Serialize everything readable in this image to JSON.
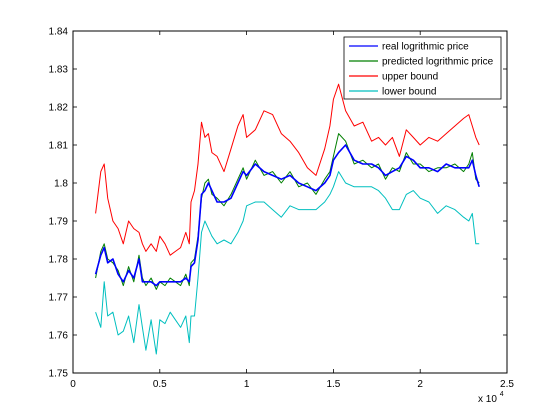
{
  "chart_data": {
    "type": "line",
    "title": "",
    "xlabel": "",
    "ylabel": "",
    "x_multiplier_label": "x 10",
    "x_multiplier_exponent": "4",
    "xlim": [
      0,
      2.5
    ],
    "ylim": [
      1.75,
      1.84
    ],
    "xticks": [
      "0",
      "0.5",
      "1",
      "1.5",
      "2",
      "2.5"
    ],
    "yticks": [
      "1.75",
      "1.76",
      "1.77",
      "1.78",
      "1.79",
      "1.8",
      "1.81",
      "1.82",
      "1.83",
      "1.84"
    ],
    "grid": false,
    "legend_position": "top-right",
    "x": [
      0.13,
      0.16,
      0.18,
      0.2,
      0.23,
      0.26,
      0.29,
      0.32,
      0.35,
      0.38,
      0.4,
      0.42,
      0.45,
      0.48,
      0.5,
      0.53,
      0.56,
      0.59,
      0.62,
      0.65,
      0.67,
      0.68,
      0.7,
      0.72,
      0.74,
      0.76,
      0.78,
      0.8,
      0.83,
      0.87,
      0.91,
      0.95,
      0.98,
      1.0,
      1.05,
      1.1,
      1.15,
      1.2,
      1.25,
      1.3,
      1.35,
      1.4,
      1.45,
      1.48,
      1.5,
      1.53,
      1.57,
      1.62,
      1.67,
      1.72,
      1.76,
      1.8,
      1.84,
      1.88,
      1.92,
      1.96,
      2.0,
      2.05,
      2.1,
      2.15,
      2.2,
      2.25,
      2.28,
      2.3,
      2.32,
      2.34
    ],
    "series": [
      {
        "name": "real logrithmic price",
        "color": "#0000ff",
        "values": [
          1.776,
          1.781,
          1.783,
          1.779,
          1.78,
          1.776,
          1.774,
          1.777,
          1.775,
          1.78,
          1.774,
          1.774,
          1.774,
          1.773,
          1.774,
          1.774,
          1.774,
          1.774,
          1.774,
          1.775,
          1.774,
          1.778,
          1.779,
          1.785,
          1.797,
          1.798,
          1.8,
          1.798,
          1.795,
          1.795,
          1.796,
          1.8,
          1.803,
          1.802,
          1.805,
          1.803,
          1.802,
          1.801,
          1.802,
          1.8,
          1.799,
          1.798,
          1.8,
          1.802,
          1.806,
          1.808,
          1.81,
          1.806,
          1.805,
          1.805,
          1.804,
          1.802,
          1.803,
          1.804,
          1.807,
          1.806,
          1.804,
          1.804,
          1.803,
          1.805,
          1.804,
          1.804,
          1.804,
          1.806,
          1.802,
          1.799
        ]
      },
      {
        "name": "predicted logrithmic price",
        "color": "#007f00",
        "values": [
          1.775,
          1.782,
          1.784,
          1.78,
          1.779,
          1.777,
          1.773,
          1.778,
          1.774,
          1.781,
          1.775,
          1.773,
          1.775,
          1.772,
          1.774,
          1.773,
          1.775,
          1.774,
          1.773,
          1.776,
          1.773,
          1.779,
          1.78,
          1.786,
          1.796,
          1.8,
          1.801,
          1.797,
          1.796,
          1.794,
          1.797,
          1.801,
          1.804,
          1.801,
          1.806,
          1.802,
          1.803,
          1.8,
          1.803,
          1.799,
          1.8,
          1.797,
          1.801,
          1.803,
          1.807,
          1.813,
          1.811,
          1.805,
          1.806,
          1.804,
          1.805,
          1.801,
          1.804,
          1.803,
          1.808,
          1.805,
          1.805,
          1.803,
          1.804,
          1.804,
          1.805,
          1.803,
          1.805,
          1.808,
          1.801,
          1.8
        ]
      },
      {
        "name": "upper bound",
        "color": "#ff0000",
        "values": [
          1.792,
          1.803,
          1.805,
          1.796,
          1.79,
          1.788,
          1.784,
          1.79,
          1.788,
          1.787,
          1.784,
          1.782,
          1.784,
          1.782,
          1.786,
          1.784,
          1.781,
          1.782,
          1.783,
          1.787,
          1.784,
          1.795,
          1.798,
          1.805,
          1.816,
          1.812,
          1.813,
          1.808,
          1.807,
          1.803,
          1.809,
          1.815,
          1.818,
          1.812,
          1.814,
          1.819,
          1.818,
          1.813,
          1.811,
          1.808,
          1.804,
          1.802,
          1.809,
          1.815,
          1.822,
          1.826,
          1.819,
          1.815,
          1.816,
          1.811,
          1.812,
          1.81,
          1.812,
          1.807,
          1.814,
          1.812,
          1.81,
          1.812,
          1.811,
          1.813,
          1.815,
          1.817,
          1.818,
          1.815,
          1.812,
          1.81
        ]
      },
      {
        "name": "lower bound",
        "color": "#00bfbf",
        "values": [
          1.766,
          1.762,
          1.774,
          1.765,
          1.766,
          1.76,
          1.761,
          1.765,
          1.758,
          1.768,
          1.762,
          1.756,
          1.764,
          1.755,
          1.764,
          1.763,
          1.766,
          1.764,
          1.762,
          1.765,
          1.758,
          1.765,
          1.765,
          1.775,
          1.787,
          1.79,
          1.788,
          1.786,
          1.784,
          1.785,
          1.784,
          1.787,
          1.79,
          1.794,
          1.795,
          1.795,
          1.793,
          1.791,
          1.794,
          1.793,
          1.793,
          1.793,
          1.795,
          1.797,
          1.799,
          1.803,
          1.8,
          1.799,
          1.799,
          1.799,
          1.798,
          1.796,
          1.793,
          1.793,
          1.797,
          1.798,
          1.796,
          1.795,
          1.792,
          1.794,
          1.793,
          1.791,
          1.79,
          1.792,
          1.784,
          1.784
        ]
      }
    ]
  }
}
